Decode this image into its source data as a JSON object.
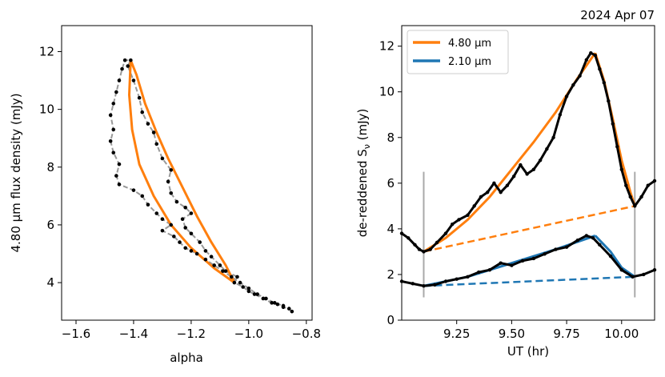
{
  "figure": {
    "date_label": "2024 Apr 07"
  },
  "chart_data": [
    {
      "type": "scatter",
      "panel": "left",
      "title": "",
      "xlabel": "alpha",
      "ylabel": "4.80 μm flux density (mJy)",
      "xlim": [
        -1.65,
        -0.78
      ],
      "ylim": [
        2.7,
        12.9
      ],
      "xticks": [
        -1.6,
        -1.4,
        -1.2,
        -1.0,
        -0.8
      ],
      "xtick_labels": [
        "−1.6",
        "−1.4",
        "−1.2",
        "−1.0",
        "−0.8"
      ],
      "yticks": [
        4,
        6,
        8,
        10,
        12
      ],
      "ytick_labels": [
        "4",
        "6",
        "8",
        "10",
        "12"
      ],
      "grid": false,
      "series": [
        {
          "kind": "observed",
          "color": "#000000",
          "line_color": "#999999",
          "points": [
            [
              -0.85,
              3.0
            ],
            [
              -0.86,
              3.1
            ],
            [
              -0.88,
              3.15
            ],
            [
              -0.9,
              3.25
            ],
            [
              -0.92,
              3.3
            ],
            [
              -0.95,
              3.45
            ],
            [
              -0.98,
              3.6
            ],
            [
              -1.0,
              3.7
            ],
            [
              -1.02,
              3.85
            ],
            [
              -1.05,
              4.0
            ],
            [
              -1.04,
              4.2
            ],
            [
              -1.08,
              4.4
            ],
            [
              -1.1,
              4.6
            ],
            [
              -1.13,
              4.9
            ],
            [
              -1.15,
              5.1
            ],
            [
              -1.17,
              5.4
            ],
            [
              -1.2,
              5.7
            ],
            [
              -1.22,
              5.9
            ],
            [
              -1.23,
              6.2
            ],
            [
              -1.2,
              6.4
            ],
            [
              -1.22,
              6.6
            ],
            [
              -1.25,
              6.8
            ],
            [
              -1.27,
              7.1
            ],
            [
              -1.28,
              7.5
            ],
            [
              -1.27,
              7.9
            ],
            [
              -1.3,
              8.3
            ],
            [
              -1.32,
              8.8
            ],
            [
              -1.33,
              9.2
            ],
            [
              -1.35,
              9.5
            ],
            [
              -1.37,
              9.9
            ],
            [
              -1.38,
              10.4
            ],
            [
              -1.4,
              11.0
            ],
            [
              -1.42,
              11.5
            ],
            [
              -1.41,
              11.7
            ],
            [
              -1.43,
              11.7
            ],
            [
              -1.44,
              11.4
            ],
            [
              -1.45,
              11.0
            ],
            [
              -1.46,
              10.6
            ],
            [
              -1.47,
              10.2
            ],
            [
              -1.48,
              9.8
            ],
            [
              -1.47,
              9.3
            ],
            [
              -1.48,
              8.9
            ],
            [
              -1.47,
              8.5
            ],
            [
              -1.45,
              8.1
            ],
            [
              -1.46,
              7.7
            ],
            [
              -1.45,
              7.4
            ],
            [
              -1.4,
              7.2
            ],
            [
              -1.37,
              7.0
            ],
            [
              -1.35,
              6.7
            ],
            [
              -1.32,
              6.4
            ],
            [
              -1.3,
              6.2
            ],
            [
              -1.27,
              6.0
            ],
            [
              -1.3,
              5.8
            ],
            [
              -1.26,
              5.6
            ],
            [
              -1.24,
              5.4
            ],
            [
              -1.22,
              5.2
            ],
            [
              -1.2,
              5.1
            ],
            [
              -1.18,
              5.0
            ],
            [
              -1.15,
              4.8
            ],
            [
              -1.12,
              4.6
            ],
            [
              -1.09,
              4.4
            ],
            [
              -1.06,
              4.2
            ],
            [
              -1.03,
              4.0
            ],
            [
              -1.0,
              3.8
            ],
            [
              -0.97,
              3.6
            ],
            [
              -0.94,
              3.45
            ],
            [
              -0.91,
              3.3
            ],
            [
              -0.88,
              3.2
            ]
          ]
        },
        {
          "kind": "model",
          "color": "#ff7f0e",
          "points": [
            [
              -1.05,
              4.0
            ],
            [
              -1.12,
              4.5
            ],
            [
              -1.2,
              5.2
            ],
            [
              -1.27,
              6.0
            ],
            [
              -1.33,
              7.0
            ],
            [
              -1.38,
              8.1
            ],
            [
              -1.405,
              9.3
            ],
            [
              -1.415,
              10.5
            ],
            [
              -1.41,
              11.7
            ],
            [
              -1.39,
              11.2
            ],
            [
              -1.36,
              10.2
            ],
            [
              -1.32,
              9.2
            ],
            [
              -1.28,
              8.3
            ],
            [
              -1.23,
              7.3
            ],
            [
              -1.18,
              6.3
            ],
            [
              -1.13,
              5.4
            ],
            [
              -1.08,
              4.6
            ],
            [
              -1.05,
              4.0
            ]
          ]
        }
      ]
    },
    {
      "type": "line",
      "panel": "right",
      "title": "",
      "xlabel": "UT (hr)",
      "ylabel": "de-reddened  S",
      "ylabel_subscript": "ν",
      "ylabel_unit": " (mJy)",
      "xlim": [
        9.0,
        10.15
      ],
      "ylim": [
        0,
        12.9
      ],
      "xticks": [
        9.25,
        9.5,
        9.75,
        10.0
      ],
      "xtick_labels": [
        "9.25",
        "9.50",
        "9.75",
        "10.00"
      ],
      "yticks": [
        0,
        2,
        4,
        6,
        8,
        10,
        12
      ],
      "ytick_labels": [
        "0",
        "2",
        "4",
        "6",
        "8",
        "10",
        "12"
      ],
      "grid": false,
      "legend_position": "upper-left",
      "vlines": [
        9.1,
        10.06
      ],
      "vline_range": [
        1.0,
        6.5
      ],
      "series": [
        {
          "name": "4.80 μm",
          "color": "#ff7f0e",
          "fit_x": [
            9.1,
            9.2,
            9.3,
            9.4,
            9.5,
            9.6,
            9.7,
            9.8,
            9.88
          ],
          "fit_y": [
            3.0,
            3.6,
            4.4,
            5.4,
            6.6,
            7.8,
            9.1,
            10.6,
            11.7
          ],
          "decay_x": [
            9.88,
            9.92,
            9.96,
            10.0,
            10.04,
            10.06
          ],
          "decay_y": [
            11.7,
            10.5,
            8.8,
            7.0,
            5.6,
            5.0
          ],
          "baseline": [
            [
              9.1,
              3.0
            ],
            [
              10.06,
              5.0
            ]
          ],
          "observed": [
            [
              9.0,
              3.8
            ],
            [
              9.03,
              3.6
            ],
            [
              9.06,
              3.3
            ],
            [
              9.08,
              3.1
            ],
            [
              9.1,
              3.0
            ],
            [
              9.13,
              3.1
            ],
            [
              9.16,
              3.4
            ],
            [
              9.2,
              3.8
            ],
            [
              9.23,
              4.2
            ],
            [
              9.26,
              4.4
            ],
            [
              9.3,
              4.6
            ],
            [
              9.33,
              5.0
            ],
            [
              9.36,
              5.4
            ],
            [
              9.39,
              5.6
            ],
            [
              9.42,
              6.0
            ],
            [
              9.45,
              5.6
            ],
            [
              9.48,
              5.9
            ],
            [
              9.51,
              6.3
            ],
            [
              9.54,
              6.8
            ],
            [
              9.57,
              6.4
            ],
            [
              9.6,
              6.6
            ],
            [
              9.63,
              7.0
            ],
            [
              9.66,
              7.5
            ],
            [
              9.69,
              8.0
            ],
            [
              9.72,
              9.0
            ],
            [
              9.75,
              9.8
            ],
            [
              9.78,
              10.3
            ],
            [
              9.81,
              10.7
            ],
            [
              9.84,
              11.4
            ],
            [
              9.86,
              11.7
            ],
            [
              9.88,
              11.6
            ],
            [
              9.9,
              11.0
            ],
            [
              9.92,
              10.4
            ],
            [
              9.94,
              9.6
            ],
            [
              9.96,
              8.6
            ],
            [
              9.98,
              7.6
            ],
            [
              10.0,
              6.6
            ],
            [
              10.02,
              5.9
            ],
            [
              10.04,
              5.4
            ],
            [
              10.06,
              5.0
            ],
            [
              10.09,
              5.4
            ],
            [
              10.12,
              5.9
            ],
            [
              10.15,
              6.1
            ]
          ]
        },
        {
          "name": "2.10 μm",
          "color": "#1f77b4",
          "fit_x": [
            9.1,
            9.3,
            9.5,
            9.7,
            9.85,
            9.88
          ],
          "fit_y": [
            1.5,
            1.9,
            2.5,
            3.1,
            3.6,
            3.7
          ],
          "decay_x": [
            9.88,
            9.95,
            10.0,
            10.06
          ],
          "decay_y": [
            3.7,
            3.0,
            2.3,
            1.9
          ],
          "baseline": [
            [
              9.1,
              1.5
            ],
            [
              10.06,
              1.9
            ]
          ],
          "observed": [
            [
              9.0,
              1.7
            ],
            [
              9.05,
              1.6
            ],
            [
              9.1,
              1.5
            ],
            [
              9.15,
              1.55
            ],
            [
              9.2,
              1.7
            ],
            [
              9.25,
              1.8
            ],
            [
              9.3,
              1.9
            ],
            [
              9.35,
              2.1
            ],
            [
              9.4,
              2.2
            ],
            [
              9.45,
              2.5
            ],
            [
              9.5,
              2.4
            ],
            [
              9.55,
              2.6
            ],
            [
              9.6,
              2.7
            ],
            [
              9.65,
              2.9
            ],
            [
              9.7,
              3.1
            ],
            [
              9.75,
              3.2
            ],
            [
              9.8,
              3.5
            ],
            [
              9.84,
              3.7
            ],
            [
              9.87,
              3.6
            ],
            [
              9.9,
              3.3
            ],
            [
              9.95,
              2.8
            ],
            [
              10.0,
              2.2
            ],
            [
              10.05,
              1.9
            ],
            [
              10.1,
              2.0
            ],
            [
              10.15,
              2.2
            ]
          ]
        }
      ]
    }
  ]
}
